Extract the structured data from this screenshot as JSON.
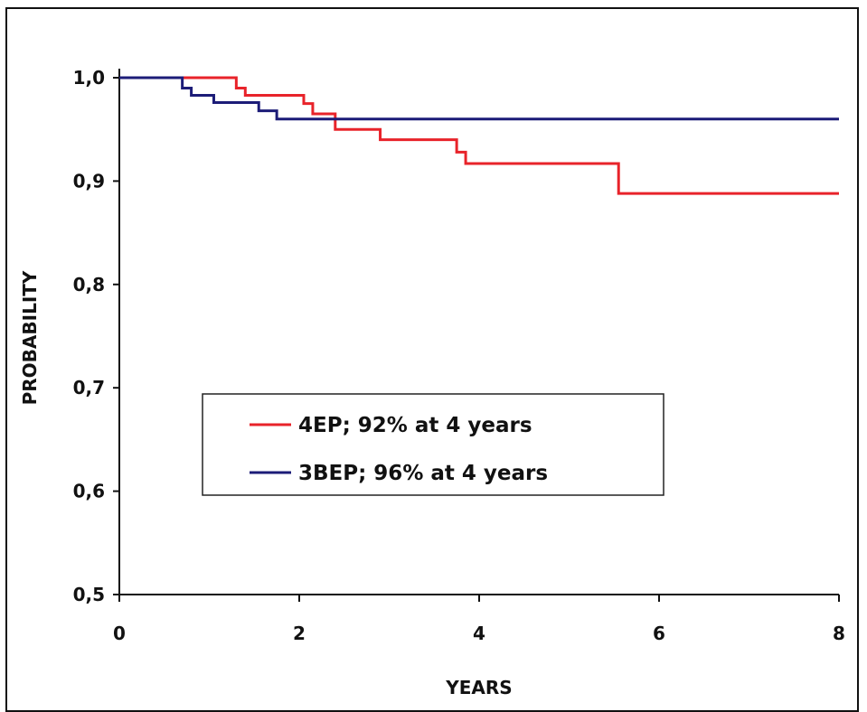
{
  "chart_data": {
    "type": "line",
    "step": true,
    "title": "",
    "xlabel": "YEARS",
    "ylabel": "PROBABILITY",
    "xlim": [
      0,
      8
    ],
    "ylim": [
      0.5,
      1.0
    ],
    "xticks": [
      0,
      2,
      4,
      6,
      8
    ],
    "xtick_labels": [
      "0",
      "2",
      "4",
      "6",
      "8"
    ],
    "yticks": [
      0.5,
      0.6,
      0.7,
      0.8,
      0.9,
      1.0
    ],
    "ytick_labels": [
      "0,5",
      "0,6",
      "0,7",
      "0,8",
      "0,9",
      "1,0"
    ],
    "grid": false,
    "legend_position": "center-left",
    "series": [
      {
        "name": "4EP; 92% at 4 years",
        "color": "#e8232a",
        "x": [
          0,
          1.2,
          1.3,
          1.4,
          2.0,
          2.05,
          2.15,
          2.4,
          2.9,
          3.75,
          3.85,
          5.55,
          8.0
        ],
        "y": [
          1.0,
          1.0,
          0.99,
          0.983,
          0.983,
          0.975,
          0.965,
          0.95,
          0.94,
          0.928,
          0.917,
          0.888,
          0.888
        ]
      },
      {
        "name": "3BEP; 96% at 4 years",
        "color": "#1c1c78",
        "x": [
          0,
          0.7,
          0.8,
          1.05,
          1.55,
          1.75,
          8.0
        ],
        "y": [
          1.0,
          0.99,
          0.983,
          0.976,
          0.968,
          0.96,
          0.96
        ]
      }
    ]
  }
}
